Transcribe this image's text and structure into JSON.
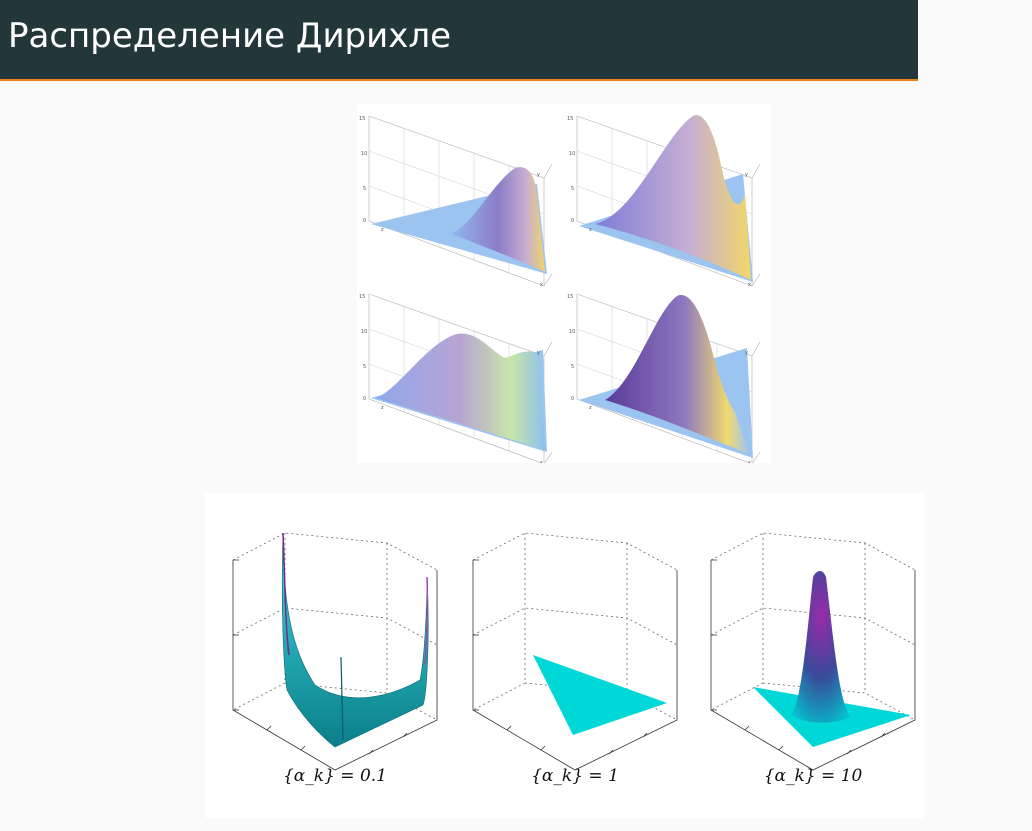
{
  "slide": {
    "title": "Распределение Дирихле"
  },
  "colors": {
    "header_bg": "#23373b",
    "accent": "#eb811b",
    "surface_cyan": "#00d8d8",
    "peak_purple": "#7a2a8c"
  },
  "top_figure": {
    "z_ticks": [
      "15",
      "10",
      "5",
      "0"
    ],
    "axis_labels": {
      "x": "x",
      "y": "y",
      "z": "z"
    }
  },
  "bottom_figure": {
    "captions": [
      "{α_k} = 0.1",
      "{α_k} = 1",
      "{α_k} = 10"
    ]
  }
}
